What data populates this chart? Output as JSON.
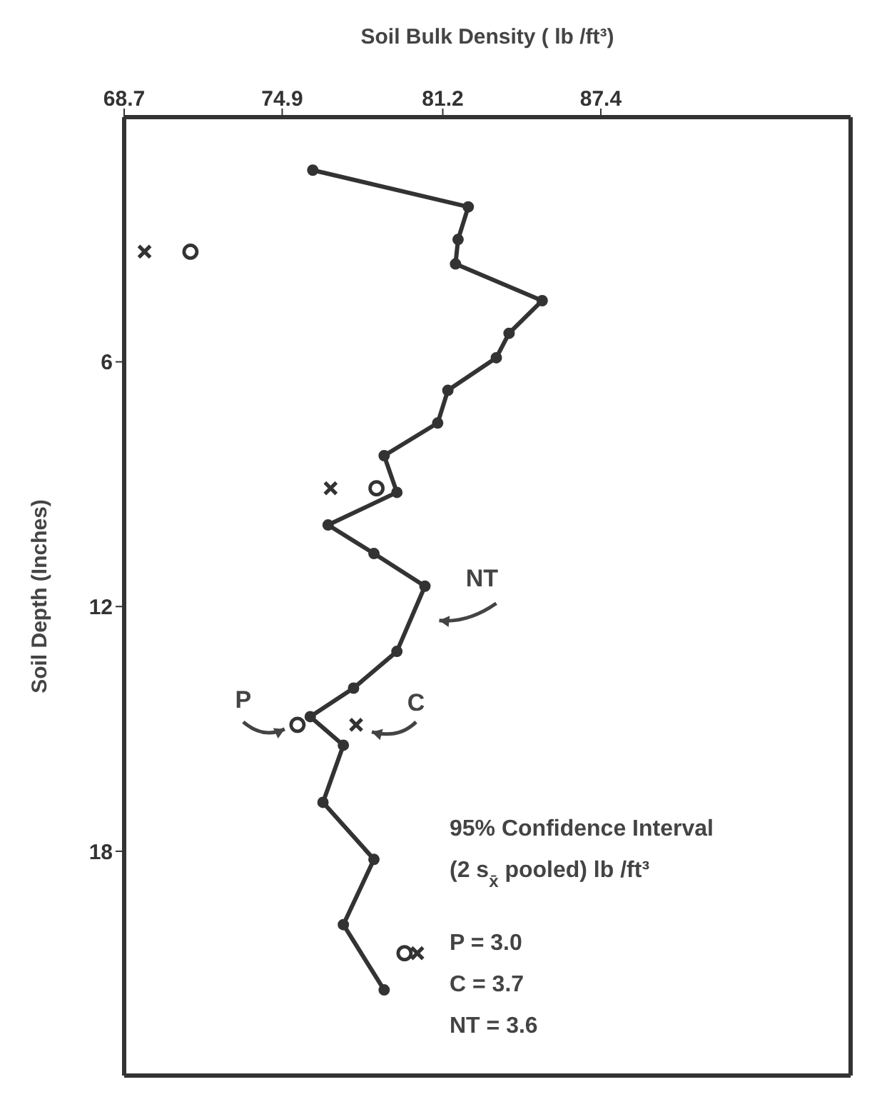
{
  "chart_data": {
    "type": "line",
    "xlabel": "Soil Bulk Density ( lb /ft³)",
    "ylabel": "Soil Depth (Inches)",
    "xlim": [
      68.7,
      97.2
    ],
    "xticks": [
      68.7,
      74.9,
      81.2,
      87.4
    ],
    "ylim": [
      23.5,
      0
    ],
    "yticks": [
      6,
      12,
      18
    ],
    "grid": false,
    "legend": false,
    "series": [
      {
        "name": "NT",
        "color": "#333333",
        "marker": "circle",
        "line_style": "solid",
        "x": [
          76.1,
          82.2,
          81.8,
          81.7,
          85.1,
          83.8,
          83.3,
          81.4,
          81.0,
          78.9,
          79.4,
          76.7,
          78.5,
          80.5,
          79.4,
          77.7,
          76.0,
          77.3,
          76.5,
          78.5,
          77.3,
          78.9
        ],
        "values": [
          1.3,
          2.2,
          3.0,
          3.6,
          4.5,
          5.3,
          5.9,
          6.7,
          7.5,
          8.3,
          9.2,
          10.0,
          10.7,
          11.5,
          13.1,
          14.0,
          14.7,
          15.4,
          16.8,
          18.2,
          19.8,
          21.4
        ]
      },
      {
        "name": "P",
        "type": "scatter",
        "color": "#333333",
        "marker": "circle",
        "x": [
          71.3,
          78.6,
          75.5,
          79.7
        ],
        "values": [
          3.3,
          9.1,
          14.9,
          20.5
        ]
      },
      {
        "name": "C",
        "type": "scatter",
        "color": "#333333",
        "marker": "cross",
        "x": [
          69.5,
          76.8,
          77.8,
          80.2
        ],
        "values": [
          3.3,
          9.1,
          14.9,
          20.5
        ]
      }
    ],
    "annotations": [
      "95% Confidence Interval",
      "(2 s$_{x̄}$ pooled) lb /ft³",
      "P = 3.0",
      "C = 3.7",
      "NT = 3.6"
    ]
  }
}
